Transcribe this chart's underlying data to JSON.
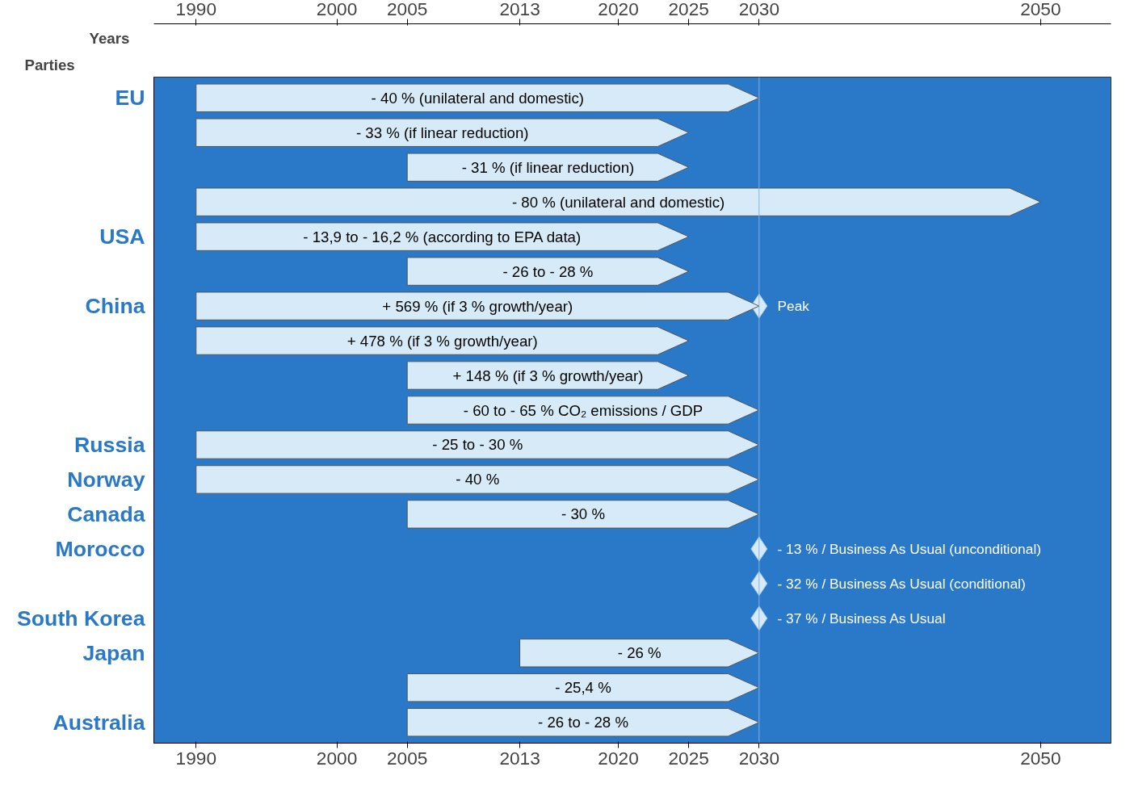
{
  "chart_data": {
    "type": "bar",
    "orientation": "horizontal",
    "xlabel": "Years",
    "ylabel": "Parties",
    "categories": [
      "EU",
      null,
      null,
      null,
      "USA",
      null,
      "China",
      null,
      null,
      null,
      "Russia",
      "Norway",
      "Canada",
      "Morocco",
      null,
      "South Korea",
      "Japan",
      null,
      "Australia"
    ],
    "series": [
      {
        "color": "#d6ebf7",
        "base": [
          1990,
          1990,
          2005,
          1990,
          1990,
          2005,
          1990,
          1990,
          2005,
          2005,
          1990,
          1990,
          2005,
          null,
          null,
          null,
          2013,
          2005,
          2005
        ],
        "values": [
          40,
          35,
          20,
          60,
          35,
          20,
          40,
          35,
          20,
          25,
          40,
          40,
          25,
          null,
          null,
          null,
          17,
          25,
          25
        ]
      },
      {
        "type": "scatter",
        "marker": "diamond",
        "color": "#d6ebf7",
        "values": [
          null,
          null,
          null,
          null,
          null,
          null,
          2030,
          null,
          null,
          null,
          null,
          null,
          null,
          2030,
          2030,
          2030,
          null,
          null,
          null
        ]
      }
    ],
    "annotations": [
      "- 40 % (unilateral and domestic)",
      "- 33 % (if linear reduction)",
      "- 31 % (if linear reduction)",
      "- 80 % (unilateral and domestic)",
      "- 13,9 to - 16,2 % (according to EPA data)",
      "- 26 to - 28 %",
      "+ 569 % (if 3 % growth/year)",
      "+ 478 % (if 3 % growth/year)",
      "+ 148 % (if 3 % growth/year)",
      "- 60 to - 65 % CO₂ emissions / GDP",
      "- 25 to - 30 %",
      "- 40 %",
      "- 30 %",
      "- 26 %",
      "- 25,4 %",
      "- 26 to - 28 %",
      "Peak",
      "- 13 % / Business As Usual (unconditional)",
      "- 32 % / Business As Usual (conditional)",
      "- 37 % / Business As Usual"
    ],
    "xlim": [
      1987,
      2055
    ],
    "xticks": [
      1990,
      2000,
      2005,
      2013,
      2020,
      2025,
      2030,
      2050
    ],
    "x2lim": [
      1987,
      2055
    ],
    "x2ticks": [
      1990,
      2000,
      2005,
      2013,
      2020,
      2025,
      2030,
      2050
    ],
    "ref_lines": [
      {
        "axis": "x",
        "value": 2030,
        "label": null,
        "color": "#7fb3e6"
      }
    ]
  }
}
